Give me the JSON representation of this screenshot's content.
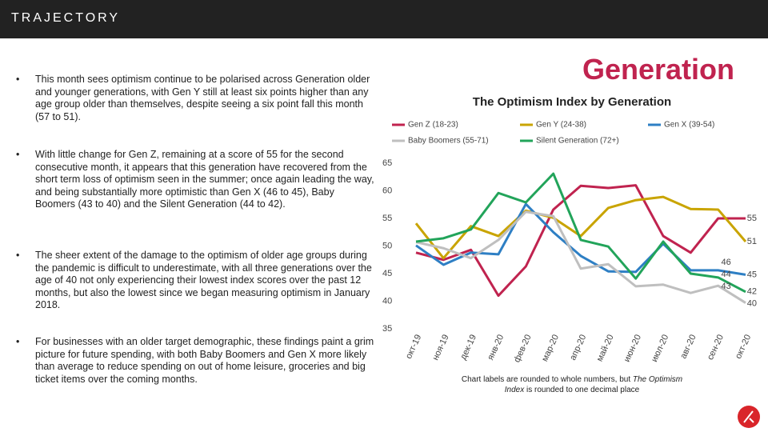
{
  "header": {
    "logo": "TRAJECTORY"
  },
  "bullets": [
    "This month sees optimism continue to be polarised across Generation older and younger generations, with Gen Y still at least six points higher than any age group older than themselves, despite seeing a six point fall this month (57 to 51).",
    "With little change for Gen Z, remaining at a score of 55 for the second consecutive month, it appears that this generation have recovered from the short term loss of optimism seen in the summer; once again leading the way, and being substantially more optimistic than Gen X (46 to 45), Baby Boomers (43 to 40) and the Silent Generation (44 to 42).",
    "The sheer extent of the damage to the optimism of older age groups during the pandemic is difficult to underestimate, with all three generations over the age of 40 not only experiencing their lowest index scores over the past 12 months, but also the lowest since we began measuring optimism in January 2018.",
    "For businesses with an older target demographic, these findings paint a grim picture for future spending, with both Baby Boomers and Gen X more likely than average to reduce spending on out of home leisure, groceries and big ticket items over the coming months."
  ],
  "footnote": [
    "Chart labels are rounded to whole numbers, but ",
    "The Optimism Index",
    " is rounded to one decimal place"
  ],
  "chart_data": {
    "type": "line",
    "title": "Generation",
    "subtitle": "The Optimism Index by Generation",
    "categories": [
      "окт-19",
      "ноя-19",
      "дек-19",
      "янв-20",
      "фев-20",
      "мар-20",
      "апр-20",
      "май-20",
      "июн-20",
      "июл-20",
      "авг-20",
      "сен-20",
      "окт-20"
    ],
    "ylim": [
      35,
      65
    ],
    "yticks": [
      35,
      40,
      45,
      50,
      55,
      60,
      65
    ],
    "grid": false,
    "legend": "top",
    "series": [
      {
        "name": "Gen Z (18-23)",
        "color": "#c0234f",
        "values": [
          48.8,
          47.5,
          49.3,
          41,
          46.3,
          56.6,
          60.9,
          60.5,
          61,
          51.8,
          48.8,
          55,
          55
        ],
        "value_labels": [
          null,
          null,
          null,
          null,
          null,
          null,
          null,
          null,
          null,
          null,
          null,
          null,
          "55"
        ]
      },
      {
        "name": "Gen Y (24-38)",
        "color": "#c9a400",
        "values": [
          54.1,
          47.8,
          53.6,
          51.8,
          56.4,
          55.1,
          51.8,
          56.9,
          58.3,
          58.9,
          56.7,
          56.6,
          50.8
        ],
        "value_labels": [
          null,
          null,
          null,
          null,
          null,
          null,
          null,
          null,
          null,
          null,
          null,
          null,
          "51"
        ]
      },
      {
        "name": "Gen X (39-54)",
        "color": "#2e7fc4",
        "values": [
          50.1,
          46.6,
          48.8,
          48.5,
          57.6,
          52.5,
          48.2,
          45.4,
          45.3,
          50.4,
          45.6,
          45.6,
          44.8
        ],
        "value_labels": [
          null,
          null,
          null,
          null,
          null,
          null,
          null,
          null,
          null,
          null,
          null,
          "46",
          "45"
        ]
      },
      {
        "name": "Baby Boomers (55-71)",
        "color": "#bfbfbf",
        "values": [
          50.7,
          49.6,
          47.8,
          51.1,
          56.2,
          55.4,
          45.9,
          46.7,
          42.7,
          43,
          41.5,
          42.8,
          39.7
        ],
        "value_labels": [
          null,
          null,
          null,
          null,
          null,
          null,
          null,
          null,
          null,
          null,
          null,
          "43",
          "40"
        ]
      },
      {
        "name": "Silent Generation (72+)",
        "color": "#22a45a",
        "values": [
          50.8,
          51.4,
          53,
          59.6,
          57.9,
          63.1,
          51.1,
          49.9,
          44.1,
          50.8,
          45,
          44.3,
          41.7
        ],
        "value_labels": [
          null,
          null,
          null,
          null,
          null,
          null,
          null,
          null,
          null,
          null,
          null,
          "44",
          "42"
        ]
      }
    ]
  }
}
